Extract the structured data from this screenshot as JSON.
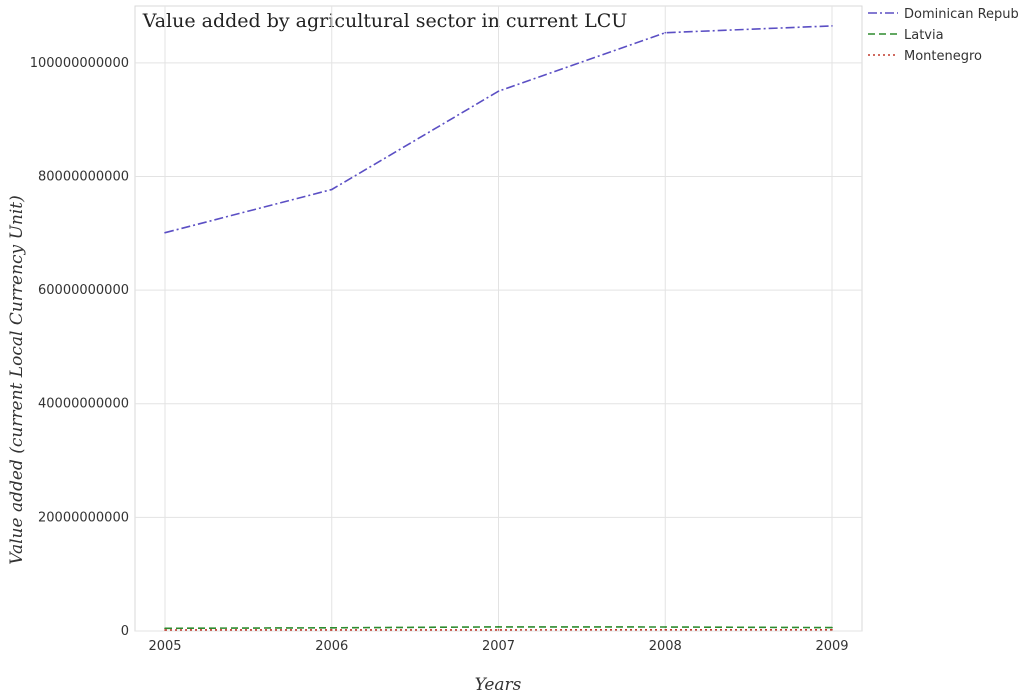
{
  "chart_data": {
    "type": "line",
    "title": "Value added by agricultural sector in current LCU",
    "xlabel": "Years",
    "ylabel": "Value added (current Local Currency Unit)",
    "categories": [
      "2005",
      "2006",
      "2007",
      "2008",
      "2009"
    ],
    "ylim": [
      0,
      110000000000
    ],
    "yticks": [
      0,
      20000000000,
      40000000000,
      60000000000,
      80000000000,
      100000000000
    ],
    "ytick_labels": [
      "0",
      "20000000000",
      "40000000000",
      "60000000000",
      "80000000000",
      "100000000000"
    ],
    "grid": true,
    "legend_position": "top-right",
    "series": [
      {
        "name": "Dominican Republic",
        "color": "#5b4fc4",
        "style": "dashdot",
        "values": [
          70100000000,
          77700000000,
          95000000000,
          105300000000,
          106500000000
        ]
      },
      {
        "name": "Latvia",
        "color": "#2e8b2e",
        "style": "dashed",
        "values": [
          480000000,
          560000000,
          730000000,
          700000000,
          600000000
        ]
      },
      {
        "name": "Montenegro",
        "color": "#c0392b",
        "style": "dotted",
        "values": [
          170000000,
          185000000,
          200000000,
          215000000,
          210000000
        ]
      }
    ]
  }
}
